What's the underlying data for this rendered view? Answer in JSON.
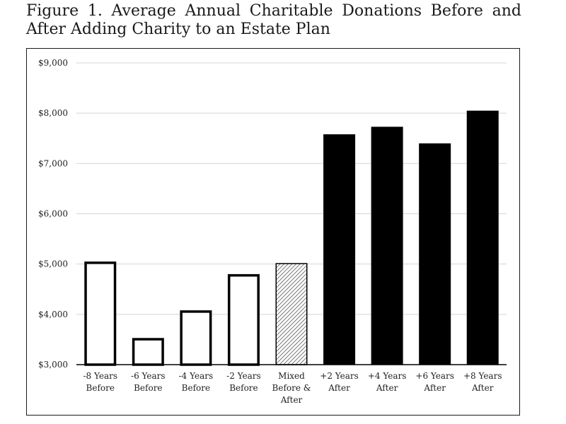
{
  "chart_data": {
    "type": "bar",
    "title": "Figure 1. Average Annual Charitable Donations Before and After Adding Charity to an Estate Plan",
    "xlabel": "",
    "ylabel": "",
    "ylim": [
      3000,
      9000
    ],
    "yticks": [
      "$3,000",
      "$4,000",
      "$5,000",
      "$6,000",
      "$7,000",
      "$8,000",
      "$9,000"
    ],
    "ytick_values": [
      3000,
      4000,
      5000,
      6000,
      7000,
      8000,
      9000
    ],
    "grid": true,
    "categories": [
      [
        "-8 Years",
        "Before"
      ],
      [
        "-6 Years",
        "Before"
      ],
      [
        "-4 Years",
        "Before"
      ],
      [
        "-2 Years",
        "Before"
      ],
      [
        "Mixed",
        "Before &",
        "After"
      ],
      [
        "+2 Years",
        "After"
      ],
      [
        "+4 Years",
        "After"
      ],
      [
        "+6 Years",
        "After"
      ],
      [
        "+8 Years",
        "After"
      ]
    ],
    "values": [
      5050,
      3530,
      4080,
      4800,
      5020,
      7580,
      7730,
      7400,
      8050
    ],
    "styles": [
      "before",
      "before",
      "before",
      "before",
      "mixed",
      "after",
      "after",
      "after",
      "after"
    ],
    "colors": {
      "before_fill": "#ffffff",
      "after_fill": "#000000",
      "outline": "#000000",
      "grid": "#d4d4d4"
    }
  }
}
